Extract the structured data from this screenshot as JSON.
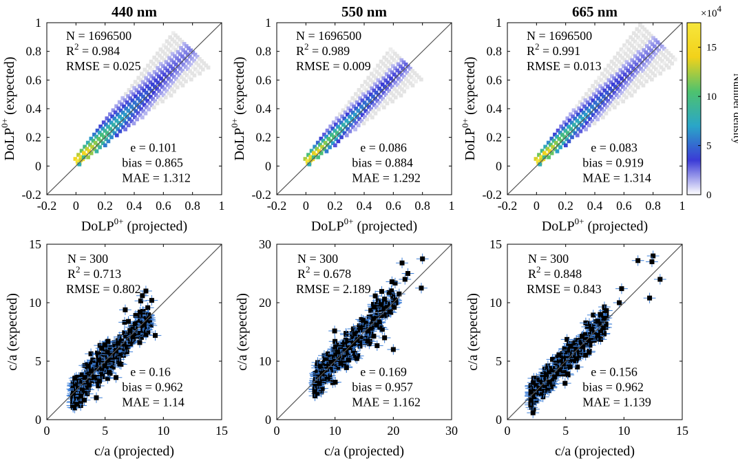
{
  "colorbar": {
    "label": "Number density",
    "multiplier": "×10",
    "multiplier_exp": "4",
    "ticks": [
      "0",
      "5",
      "10",
      "15"
    ],
    "tick_values": [
      0,
      5,
      10,
      15
    ],
    "max": 17.5,
    "colors": [
      "#ffffff",
      "#3b3bd6",
      "#2aa6c8",
      "#4ec26e",
      "#f2d21a",
      "#f7e63c"
    ]
  },
  "chart_data": [
    {
      "type": "heatmap",
      "title": "440 nm",
      "xlabel": "DoLP",
      "xlabel_sup": "0+",
      "xlabel_suffix": "(projected)",
      "ylabel": "DoLP",
      "ylabel_sup": "0+",
      "ylabel_suffix": "(expected)",
      "xlim": [
        -0.2,
        1
      ],
      "ylim": [
        -0.2,
        1
      ],
      "xticks": [
        "-0.2",
        "0",
        "0.2",
        "0.4",
        "0.6",
        "0.8",
        "1"
      ],
      "yticks": [
        "-0.2",
        "0",
        "0.2",
        "0.4",
        "0.6",
        "0.8",
        "1"
      ],
      "stats_top": [
        "N = 1696500",
        "R",
        "= 0.984",
        "RMSE = 0.025"
      ],
      "stats_bottom": [
        "e = 0.101",
        "bias = 0.865",
        "MAE = 1.312"
      ],
      "spread": 0.05,
      "extent": 0.78
    },
    {
      "type": "heatmap",
      "title": "550 nm",
      "xlabel": "DoLP",
      "xlabel_sup": "0+",
      "xlabel_suffix": "(projected)",
      "ylabel": "DoLP",
      "ylabel_sup": "0+",
      "ylabel_suffix": "(expected)",
      "xlim": [
        -0.2,
        1
      ],
      "ylim": [
        -0.2,
        1
      ],
      "xticks": [
        "-0.2",
        "0",
        "0.2",
        "0.4",
        "0.6",
        "0.8",
        "1"
      ],
      "yticks": [
        "-0.2",
        "0",
        "0.2",
        "0.4",
        "0.6",
        "0.8",
        "1"
      ],
      "stats_top": [
        "N = 1696500",
        "R",
        "= 0.989",
        "RMSE = 0.009"
      ],
      "stats_bottom": [
        "e = 0.086",
        "bias = 0.884",
        "MAE = 1.292"
      ],
      "spread": 0.035,
      "extent": 0.7
    },
    {
      "type": "heatmap",
      "title": "665 nm",
      "xlabel": "DoLP",
      "xlabel_sup": "0+",
      "xlabel_suffix": "(projected)",
      "ylabel": "DoLP",
      "ylabel_sup": "0+",
      "ylabel_suffix": "(expected)",
      "xlim": [
        -0.2,
        1
      ],
      "ylim": [
        -0.2,
        1
      ],
      "xticks": [
        "-0.2",
        "0",
        "0.2",
        "0.4",
        "0.6",
        "0.8",
        "1"
      ],
      "yticks": [
        "-0.2",
        "0",
        "0.2",
        "0.4",
        "0.6",
        "0.8",
        "1"
      ],
      "stats_top": [
        "N = 1696500",
        "R",
        "= 0.991",
        "RMSE = 0.013"
      ],
      "stats_bottom": [
        "e = 0.083",
        "bias = 0.919",
        "MAE = 1.314"
      ],
      "spread": 0.04,
      "extent": 0.85
    },
    {
      "type": "scatter",
      "xlabel": "c/a (projected)",
      "ylabel": "c/a (expected)",
      "xlim": [
        0,
        15
      ],
      "ylim": [
        0,
        15
      ],
      "xticks": [
        "0",
        "5",
        "10",
        "15"
      ],
      "yticks": [
        "0",
        "5",
        "10",
        "15"
      ],
      "stats_top": [
        "N = 300",
        "R",
        "= 0.713",
        "RMSE = 0.802"
      ],
      "stats_bottom": [
        "e = 0.16",
        "bias = 0.962",
        "MAE = 1.14"
      ],
      "n": 300,
      "xmin": 2.2,
      "xmax": 9.0,
      "scatter": 0.7,
      "outliers": [
        [
          8.5,
          11.0
        ],
        [
          8.2,
          10.6
        ],
        [
          9.0,
          10.2
        ],
        [
          8.0,
          9.2
        ],
        [
          7.0,
          8.4
        ],
        [
          9.3,
          7.2
        ]
      ]
    },
    {
      "type": "scatter",
      "xlabel": "c/a (projected)",
      "ylabel": "c/a (expected)",
      "xlim": [
        0,
        30
      ],
      "ylim": [
        0,
        30
      ],
      "xticks": [
        "0",
        "10",
        "20",
        "30"
      ],
      "yticks": [
        "0",
        "10",
        "20",
        "30"
      ],
      "stats_top": [
        "N = 300",
        "R",
        "= 0.678",
        "RMSE = 2.189"
      ],
      "stats_bottom": [
        "e = 0.169",
        "bias = 0.957",
        "MAE = 1.162"
      ],
      "n": 300,
      "xmin": 6.5,
      "xmax": 20.5,
      "scatter": 1.6,
      "outliers": [
        [
          25.0,
          27.5
        ],
        [
          21.5,
          26.8
        ],
        [
          22.5,
          25.0
        ],
        [
          22.0,
          24.0
        ],
        [
          24.8,
          22.5
        ],
        [
          21.0,
          21.5
        ],
        [
          18.5,
          14.0
        ],
        [
          20.0,
          12.0
        ]
      ]
    },
    {
      "type": "scatter",
      "xlabel": "c/a (projected)",
      "ylabel": "c/a (expected)",
      "xlim": [
        0,
        15
      ],
      "ylim": [
        0,
        15
      ],
      "xticks": [
        "0",
        "5",
        "10",
        "15"
      ],
      "yticks": [
        "0",
        "5",
        "10",
        "15"
      ],
      "stats_top": [
        "N = 300",
        "R",
        "= 0.848",
        "RMSE = 0.843"
      ],
      "stats_bottom": [
        "e = 0.156",
        "bias = 0.962",
        "MAE = 1.139"
      ],
      "n": 300,
      "xmin": 2.0,
      "xmax": 8.5,
      "scatter": 0.65,
      "outliers": [
        [
          11.2,
          13.6
        ],
        [
          12.5,
          14.0
        ],
        [
          12.4,
          13.5
        ],
        [
          13.1,
          12.0
        ],
        [
          12.2,
          10.4
        ],
        [
          9.8,
          11.2
        ],
        [
          9.6,
          10.0
        ],
        [
          8.0,
          9.0
        ]
      ]
    }
  ]
}
